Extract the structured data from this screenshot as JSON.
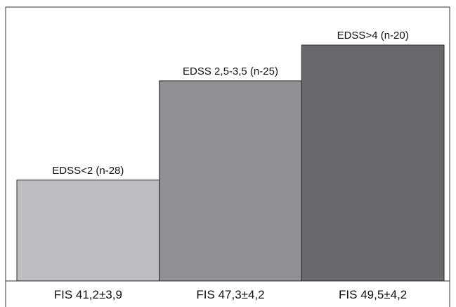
{
  "chart_data": {
    "type": "bar",
    "categories": [
      "FIS 41,2±3,9",
      "FIS 47,3±4,2",
      "FIS 49,5±4,2"
    ],
    "values": [
      41.2,
      47.3,
      49.5
    ],
    "bar_labels": [
      "EDSS<2 (n-28)",
      "EDSS 2,5-3,5 (n-25)",
      "EDSS>4 (n-20)"
    ],
    "colors": [
      "#bdbec2",
      "#8f9094",
      "#69696d"
    ],
    "title": "",
    "xlabel": "",
    "ylabel": "",
    "ylim": [
      35,
      52
    ],
    "grid": false,
    "legend": "none"
  }
}
